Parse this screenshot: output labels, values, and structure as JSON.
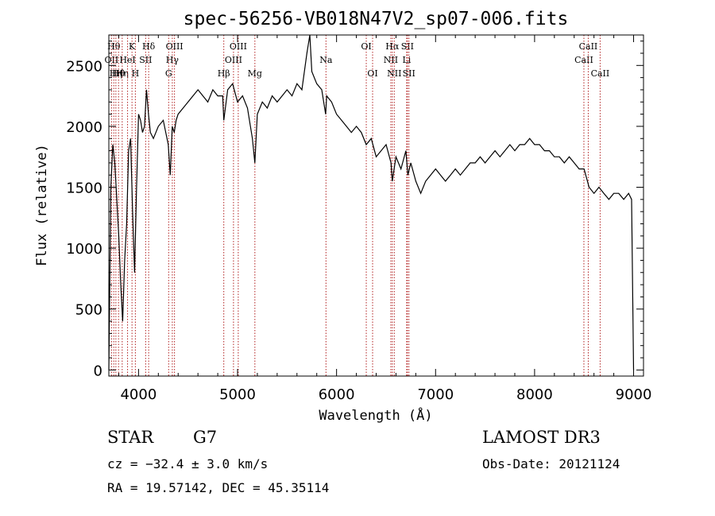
{
  "chart_data": {
    "type": "line",
    "title": "spec-56256-VB018N47V2_sp07-006.fits",
    "xlabel": "Wavelength (Å)",
    "ylabel": "Flux (relative)",
    "xlim": [
      3700,
      9100
    ],
    "ylim": [
      -50,
      2750
    ],
    "x_ticks": [
      4000,
      5000,
      6000,
      7000,
      8000,
      9000
    ],
    "y_ticks": [
      0,
      500,
      1000,
      1500,
      2000,
      2500
    ],
    "grid": false,
    "line_color": "#000000",
    "marker_color": "#b22222",
    "series": [
      {
        "x": [
          3700,
          3720,
          3740,
          3760,
          3780,
          3800,
          3820,
          3840,
          3860,
          3880,
          3900,
          3920,
          3940,
          3960,
          3980,
          4000,
          4020,
          4040,
          4060,
          4080,
          4100,
          4120,
          4150,
          4200,
          4250,
          4300,
          4320,
          4340,
          4360,
          4380,
          4400,
          4450,
          4500,
          4550,
          4600,
          4650,
          4700,
          4750,
          4800,
          4850,
          4861,
          4900,
          4950,
          5000,
          5050,
          5100,
          5150,
          5175,
          5200,
          5250,
          5300,
          5350,
          5400,
          5450,
          5500,
          5550,
          5600,
          5650,
          5700,
          5730,
          5750,
          5800,
          5850,
          5890,
          5900,
          5950,
          6000,
          6050,
          6100,
          6150,
          6200,
          6250,
          6300,
          6350,
          6400,
          6450,
          6500,
          6550,
          6563,
          6600,
          6650,
          6700,
          6720,
          6750,
          6800,
          6850,
          6900,
          6950,
          7000,
          7050,
          7100,
          7150,
          7200,
          7250,
          7300,
          7350,
          7400,
          7450,
          7500,
          7550,
          7600,
          7650,
          7700,
          7750,
          7800,
          7850,
          7900,
          7950,
          8000,
          8050,
          8100,
          8150,
          8200,
          8250,
          8300,
          8350,
          8400,
          8450,
          8500,
          8550,
          8600,
          8650,
          8700,
          8750,
          8800,
          8850,
          8900,
          8950,
          8980,
          9000
        ],
        "values": [
          0,
          1500,
          1850,
          1700,
          1400,
          1100,
          700,
          400,
          900,
          1200,
          1800,
          1900,
          1300,
          800,
          1500,
          2100,
          2050,
          1950,
          2000,
          2300,
          2100,
          1950,
          1900,
          2000,
          2050,
          1850,
          1600,
          2000,
          1950,
          2050,
          2100,
          2150,
          2200,
          2250,
          2300,
          2250,
          2200,
          2300,
          2250,
          2250,
          2050,
          2300,
          2350,
          2200,
          2250,
          2150,
          1900,
          1700,
          2100,
          2200,
          2150,
          2250,
          2200,
          2250,
          2300,
          2250,
          2350,
          2300,
          2600,
          2750,
          2450,
          2350,
          2300,
          2100,
          2250,
          2200,
          2100,
          2050,
          2000,
          1950,
          2000,
          1950,
          1850,
          1900,
          1750,
          1800,
          1850,
          1700,
          1550,
          1750,
          1650,
          1800,
          1600,
          1700,
          1550,
          1450,
          1550,
          1600,
          1650,
          1600,
          1550,
          1600,
          1650,
          1600,
          1650,
          1700,
          1700,
          1750,
          1700,
          1750,
          1800,
          1750,
          1800,
          1850,
          1800,
          1850,
          1850,
          1900,
          1850,
          1850,
          1800,
          1800,
          1750,
          1750,
          1700,
          1750,
          1700,
          1650,
          1650,
          1500,
          1450,
          1500,
          1450,
          1400,
          1450,
          1450,
          1400,
          1450,
          1400,
          0
        ]
      }
    ],
    "line_markers": [
      {
        "w": 3727,
        "label": "OII",
        "row": 2
      },
      {
        "w": 3750,
        "label": "Hθ",
        "row": 1
      },
      {
        "w": 3771,
        "label": "Hη",
        "row": 3
      },
      {
        "w": 3798,
        "label": "Hθ",
        "row": 3
      },
      {
        "w": 3835,
        "label": "Hη",
        "row": 3
      },
      {
        "w": 3889,
        "label": "HeI",
        "row": 2
      },
      {
        "w": 3934,
        "label": "K",
        "row": 1
      },
      {
        "w": 3968,
        "label": "H",
        "row": 3
      },
      {
        "w": 4072,
        "label": "SII",
        "row": 2
      },
      {
        "w": 4102,
        "label": "Hδ",
        "row": 1
      },
      {
        "w": 4304,
        "label": "G",
        "row": 3
      },
      {
        "w": 4341,
        "label": "Hγ",
        "row": 2
      },
      {
        "w": 4363,
        "label": "OIII",
        "row": 1
      },
      {
        "w": 4861,
        "label": "Hβ",
        "row": 3
      },
      {
        "w": 4959,
        "label": "OIII",
        "row": 2
      },
      {
        "w": 5007,
        "label": "OIII",
        "row": 1
      },
      {
        "w": 5175,
        "label": "Mg",
        "row": 3
      },
      {
        "w": 5893,
        "label": "Na",
        "row": 2
      },
      {
        "w": 6300,
        "label": "OI",
        "row": 1
      },
      {
        "w": 6364,
        "label": "OI",
        "row": 3
      },
      {
        "w": 6548,
        "label": "NII",
        "row": 2
      },
      {
        "w": 6563,
        "label": "Hα",
        "row": 1
      },
      {
        "w": 6583,
        "label": "NII",
        "row": 3
      },
      {
        "w": 6708,
        "label": "Li",
        "row": 2
      },
      {
        "w": 6716,
        "label": "SII",
        "row": 1
      },
      {
        "w": 6731,
        "label": "SII",
        "row": 3
      },
      {
        "w": 8498,
        "label": "CaII",
        "row": 2
      },
      {
        "w": 8542,
        "label": "CaII",
        "row": 1
      },
      {
        "w": 8662,
        "label": "CaII",
        "row": 3
      }
    ]
  },
  "info": {
    "class": "STAR",
    "subclass": "G7",
    "survey": "LAMOST DR3",
    "cz": "cz = −32.4 ± 3.0 km/s",
    "obs_date": "Obs-Date: 20121124",
    "coords": "RA =  19.57142, DEC =  45.35114"
  }
}
